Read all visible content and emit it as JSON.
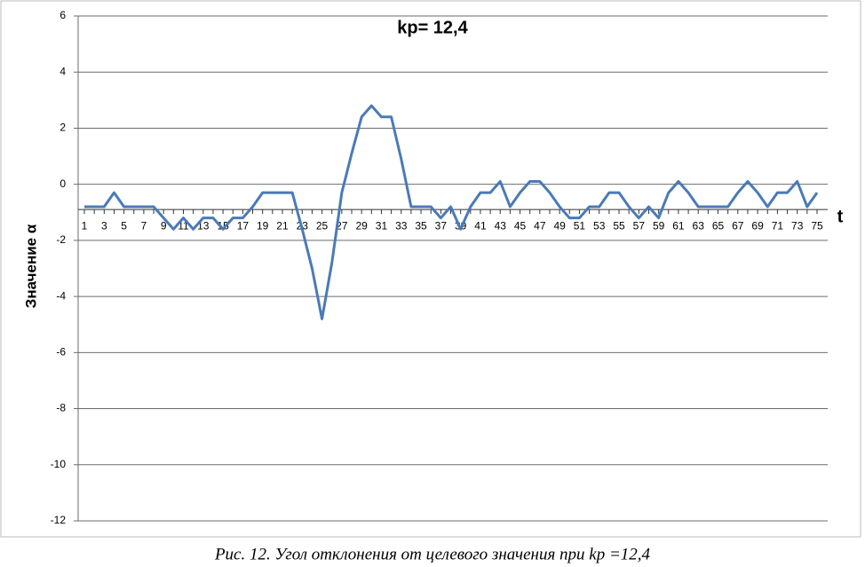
{
  "chart_data": {
    "type": "line",
    "title": "kp= 12,4",
    "y_label": "Значение α",
    "x_label": "t",
    "caption": "Рис. 12. Угол отклонения от целевого значения при kp =12,4",
    "categories": [
      1,
      null,
      3,
      null,
      5,
      null,
      7,
      null,
      9,
      null,
      11,
      null,
      13,
      null,
      15,
      null,
      17,
      null,
      19,
      null,
      21,
      null,
      23,
      null,
      25,
      null,
      27,
      null,
      29,
      null,
      31,
      null,
      33,
      null,
      35,
      null,
      37,
      null,
      39,
      null,
      41,
      null,
      43,
      null,
      45,
      null,
      47,
      null,
      49,
      null,
      51,
      null,
      53,
      null,
      55,
      null,
      57,
      null,
      59,
      null,
      61,
      null,
      63,
      null,
      65,
      null,
      67,
      null,
      69,
      null,
      71,
      null,
      73,
      null,
      75
    ],
    "values": [
      -0.8,
      -0.8,
      -0.8,
      -0.3,
      -0.8,
      -0.8,
      -0.8,
      -0.8,
      -1.2,
      -1.6,
      -1.2,
      -1.6,
      -1.2,
      -1.2,
      -1.6,
      -1.2,
      -1.2,
      -0.8,
      -0.3,
      -0.3,
      -0.3,
      -0.3,
      -1.6,
      -3.0,
      -4.8,
      -2.8,
      -0.3,
      1.1,
      2.4,
      2.8,
      2.4,
      2.4,
      0.9,
      -0.8,
      -0.8,
      -0.8,
      -1.2,
      -0.8,
      -1.6,
      -0.8,
      -0.3,
      -0.3,
      0.1,
      -0.8,
      -0.3,
      0.1,
      0.1,
      -0.3,
      -0.8,
      -1.2,
      -1.2,
      -0.8,
      -0.8,
      -0.3,
      -0.3,
      -0.8,
      -1.2,
      -0.8,
      -1.2,
      -0.3,
      0.1,
      -0.3,
      -0.8,
      -0.8,
      -0.8,
      -0.8,
      -0.3,
      0.1,
      -0.3,
      -0.8,
      -0.3,
      -0.3,
      0.1,
      -0.8,
      -0.3
    ],
    "color": "#4a7ab8",
    "ylim": [
      -12,
      6
    ],
    "yticks": [
      -12,
      -10,
      -8,
      -6,
      -4,
      -2,
      0,
      2,
      4,
      6
    ],
    "grid": true,
    "x_axis_crosses": -0.9
  }
}
